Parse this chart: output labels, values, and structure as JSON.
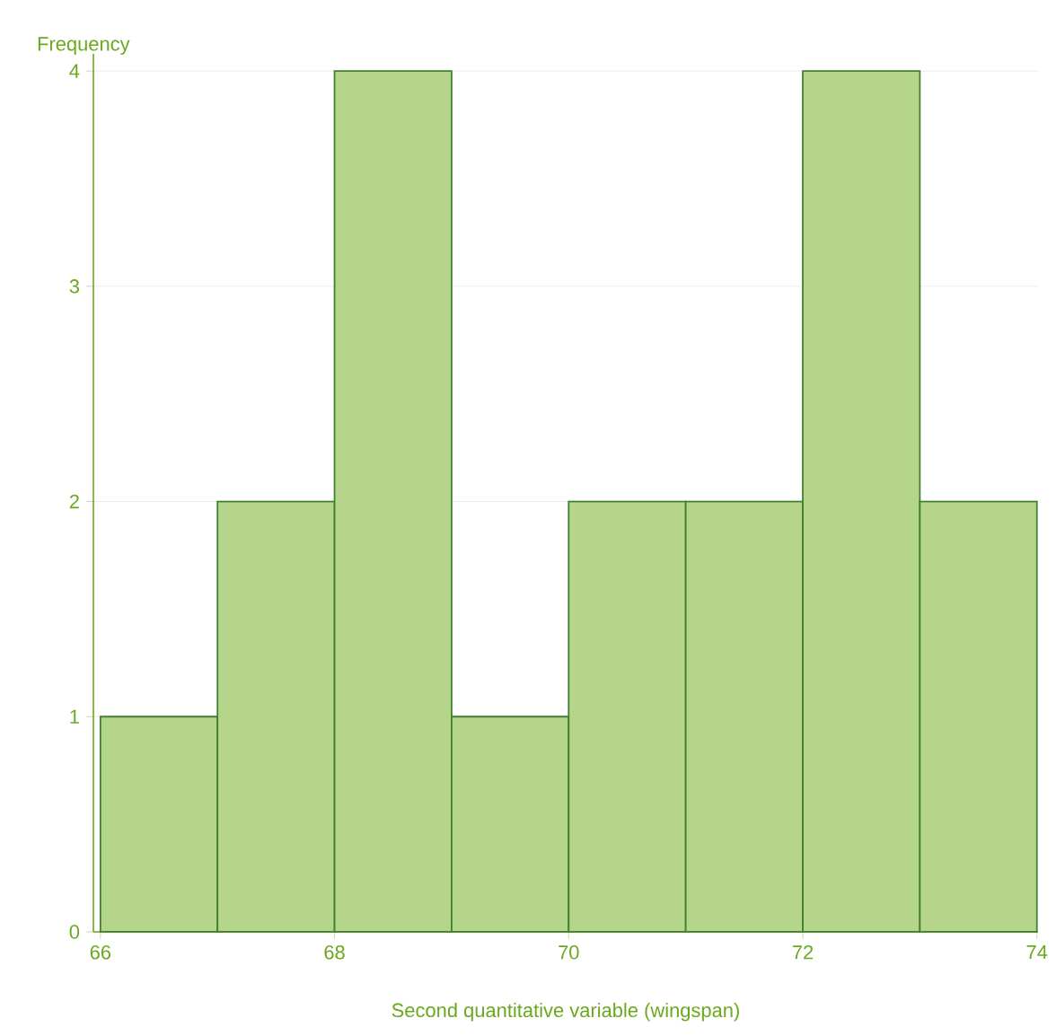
{
  "chart_data": {
    "type": "histogram",
    "xlabel": "Second quantitative variable (wingspan)",
    "ylabel": "Frequency",
    "bins": [
      66,
      67,
      68,
      69,
      70,
      71,
      72,
      73,
      74
    ],
    "values": [
      1,
      2,
      4,
      1,
      2,
      2,
      4,
      2
    ],
    "color": "#b5d58b",
    "xlim": [
      65.94,
      74.01
    ],
    "ylim": [
      0,
      4.08
    ],
    "xticks": [
      66,
      68,
      70,
      72,
      74
    ],
    "yticks": [
      0,
      1,
      2,
      3,
      4
    ],
    "grid": "y"
  }
}
